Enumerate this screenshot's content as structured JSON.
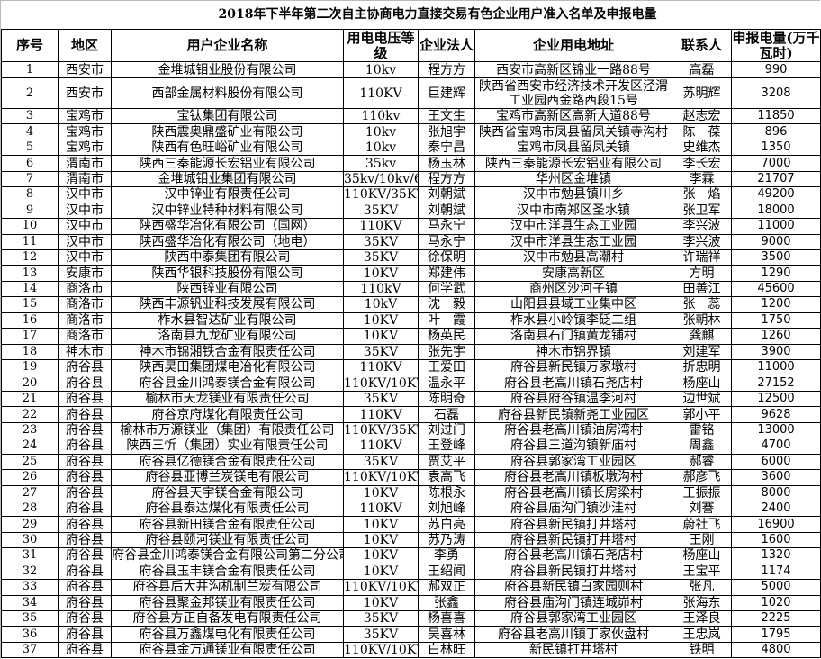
{
  "title": "2018年下半年第二次自主协商电力直接交易有色企业用户准入名单及申报电量",
  "headers": {
    "seq": "序号",
    "region": "地区",
    "company": "用户企业名称",
    "voltage": "用电电压等级",
    "legal": "企业法人",
    "address": "企业用电地址",
    "contact": "联系人",
    "amount": "申报电量(万千瓦时)"
  },
  "rows": [
    {
      "seq": "1",
      "region": "西安市",
      "company": "金堆城钼业股份有限公司",
      "voltage": "10kv",
      "legal": "程方方",
      "address": "西安市高新区锦业一路88号",
      "contact": "高磊",
      "amount": "990"
    },
    {
      "seq": "2",
      "region": "西安市",
      "company": "西部金属材料股份有限公司",
      "voltage": "110KV",
      "legal": "巨建辉",
      "address": "陕西省西安市经济技术开发区泾渭工业园西金路西段15号",
      "contact": "苏明辉",
      "amount": "3208"
    },
    {
      "seq": "3",
      "region": "宝鸡市",
      "company": "宝钛集团有限公司",
      "voltage": "110kv",
      "legal": "王文生",
      "address": "宝鸡市高新区高新大道88号",
      "contact": "赵志宏",
      "amount": "11850"
    },
    {
      "seq": "4",
      "region": "宝鸡市",
      "company": "陕西震奥鼎盛矿业有限公司",
      "voltage": "10kv",
      "legal": "张旭宇",
      "address": "陕西省宝鸡市凤县留凤关镇寺沟村",
      "contact": "陈　葆",
      "amount": "896"
    },
    {
      "seq": "5",
      "region": "宝鸡市",
      "company": "陕西有色旺峪矿业有限公司",
      "voltage": "10kv",
      "legal": "秦宁昌",
      "address": "宝鸡市凤县留凤关镇",
      "contact": "史维杰",
      "amount": "1350"
    },
    {
      "seq": "6",
      "region": "渭南市",
      "company": "陕西三秦能源长宏铝业有限公司",
      "voltage": "35kv",
      "legal": "杨玉林",
      "address": "陕西三秦能源长宏铝业有限公司",
      "contact": "李长宏",
      "amount": "7000"
    },
    {
      "seq": "7",
      "region": "渭南市",
      "company": "金堆城钼业集团有限公司",
      "voltage": "35kv/10kv/6kv",
      "legal": "程方方",
      "address": "华州区金堆镇",
      "contact": "李霖",
      "amount": "21707"
    },
    {
      "seq": "8",
      "region": "汉中市",
      "company": "汉中锌业有限责任公司",
      "voltage": "110KV/35KV",
      "legal": "刘朝斌",
      "address": "汉中市勉县镇川乡",
      "contact": "张　焰",
      "amount": "49200"
    },
    {
      "seq": "9",
      "region": "汉中市",
      "company": "汉中锌业特种材料有限公司",
      "voltage": "35KV",
      "legal": "刘朝斌",
      "address": "汉中市南郑区圣水镇",
      "contact": "张卫军",
      "amount": "18000"
    },
    {
      "seq": "10",
      "region": "汉中市",
      "company": "陕西盛华冶化有限公司（国网）",
      "voltage": "110KV",
      "legal": "马永宁",
      "address": "汉中市洋县生态工业园",
      "contact": "李兴波",
      "amount": "11000"
    },
    {
      "seq": "11",
      "region": "汉中市",
      "company": "陕西盛华冶化有限公司（地电）",
      "voltage": "35KV",
      "legal": "马永宁",
      "address": "汉中市洋县生态工业园",
      "contact": "李兴波",
      "amount": "9000"
    },
    {
      "seq": "12",
      "region": "汉中市",
      "company": "陕西中泰集团有限公司",
      "voltage": "35KV",
      "legal": "徐保明",
      "address": "汉中市勉县高潮村",
      "contact": "许瑞祥",
      "amount": "3500"
    },
    {
      "seq": "13",
      "region": "安康市",
      "company": "陕西华银科技股份有限公司",
      "voltage": "10KV",
      "legal": "郑建伟",
      "address": "安康高新区",
      "contact": "方明",
      "amount": "1290"
    },
    {
      "seq": "14",
      "region": "商洛市",
      "company": "陕西锌业有限公司",
      "voltage": "110kV",
      "legal": "何学武",
      "address": "商州区沙河子镇",
      "contact": "田善江",
      "amount": "45600"
    },
    {
      "seq": "15",
      "region": "商洛市",
      "company": "陕西丰源钒业科技发展有限公司",
      "voltage": "10kV",
      "legal": "沈　毅",
      "address": "山阳县县域工业集中区",
      "contact": "张　蕊",
      "amount": "1200"
    },
    {
      "seq": "16",
      "region": "商洛市",
      "company": "柞水县智达矿业有限公司",
      "voltage": "10KV",
      "legal": "叶　霞",
      "address": "柞水县小岭镇李砭二组",
      "contact": "张朝林",
      "amount": "1750"
    },
    {
      "seq": "17",
      "region": "商洛市",
      "company": "洛南县九龙矿业有限公司",
      "voltage": "10KV",
      "legal": "杨英民",
      "address": "洛南县石门镇黄龙铺村",
      "contact": "龚麒",
      "amount": "1260"
    },
    {
      "seq": "18",
      "region": "神木市",
      "company": "神木市锦湘铁合金有限责任公司",
      "voltage": "35KV",
      "legal": "张先宇",
      "address": "神木市锦界镇",
      "contact": "刘建军",
      "amount": "3900"
    },
    {
      "seq": "19",
      "region": "府谷县",
      "company": "陕西昊田集团煤电冶化有限公司",
      "voltage": "110KV",
      "legal": "王爱田",
      "address": "府谷县新民镇万家墩村",
      "contact": "折忠明",
      "amount": "11000"
    },
    {
      "seq": "20",
      "region": "府谷县",
      "company": "府谷县金川鸿泰镁合金有限公司",
      "voltage": "110KV/10KV",
      "legal": "温永平",
      "address": "府谷县老高川镇石尧店村",
      "contact": "杨座山",
      "amount": "27152"
    },
    {
      "seq": "21",
      "region": "府谷县",
      "company": "榆林市天龙镁业有限责任公司",
      "voltage": "35KV",
      "legal": "陈明奇",
      "address": "府谷县府谷镇温李河村",
      "contact": "边世斌",
      "amount": "12500"
    },
    {
      "seq": "22",
      "region": "府谷县",
      "company": "府谷京府煤化有限责任公司",
      "voltage": "110KV",
      "legal": "石磊",
      "address": "府谷县新民镇新尧工业园区",
      "contact": "郭小平",
      "amount": "9628"
    },
    {
      "seq": "23",
      "region": "府谷县",
      "company": "榆林市万源镁业（集团）有限责任公司",
      "voltage": "110KV/35KV",
      "legal": "刘过门",
      "address": "府谷县老高川镇油房湾村",
      "contact": "雷铭",
      "amount": "13000"
    },
    {
      "seq": "24",
      "region": "府谷县",
      "company": "陕西三忻（集团）实业有限责任公司",
      "voltage": "110KV",
      "legal": "王登峰",
      "address": "府谷县三道沟镇新庙村",
      "contact": "周鑫",
      "amount": "4700"
    },
    {
      "seq": "25",
      "region": "府谷县",
      "company": "府谷县亿德镁合金有限责任公司",
      "voltage": "35KV",
      "legal": "贾艾平",
      "address": "府谷县郭家湾工业园区",
      "contact": "郝睿",
      "amount": "6000"
    },
    {
      "seq": "26",
      "region": "府谷县",
      "company": "府谷县亚博兰炭镁电有限公司",
      "voltage": "110KV/10KV",
      "legal": "袁高飞",
      "address": "府谷县老高川镇板墩沟村",
      "contact": "郝彦飞",
      "amount": "3600"
    },
    {
      "seq": "27",
      "region": "府谷县",
      "company": "府谷县天宇镁合金有限公司",
      "voltage": "10KV",
      "legal": "陈根永",
      "address": "府谷县老高川镇长房梁村",
      "contact": "王振振",
      "amount": "8000"
    },
    {
      "seq": "28",
      "region": "府谷县",
      "company": "府谷县泰达煤化有限责任公司",
      "voltage": "110KV",
      "legal": "刘旭峰",
      "address": "府谷县庙沟门镇沙洼村",
      "contact": "刘謇",
      "amount": "2400"
    },
    {
      "seq": "29",
      "region": "府谷县",
      "company": "府谷县新田镁合金有限责任公司",
      "voltage": "10KV",
      "legal": "苏白亮",
      "address": "府谷县新民镇打井塔村",
      "contact": "蔚社飞",
      "amount": "16900"
    },
    {
      "seq": "30",
      "region": "府谷县",
      "company": "府谷县颐河镁业有限责任公司",
      "voltage": "10KV",
      "legal": "苏乃涛",
      "address": "府谷县新民镇打井塔村",
      "contact": "王刚",
      "amount": "1600"
    },
    {
      "seq": "31",
      "region": "府谷县",
      "company": "府谷县金川鸿泰镁合金有限公司第二分公司",
      "voltage": "10KV",
      "legal": "李勇",
      "address": "府谷县老高川镇石尧店村",
      "contact": "杨座山",
      "amount": "1320"
    },
    {
      "seq": "32",
      "region": "府谷县",
      "company": "府谷县玉丰镁合金有限责任公司",
      "voltage": "10KV",
      "legal": "王绍闻",
      "address": "府谷县新民镇打井塔村",
      "contact": "王宝平",
      "amount": "1174"
    },
    {
      "seq": "33",
      "region": "府谷县",
      "company": "府谷县后大井沟机制兰炭有限公司",
      "voltage": "110KV/10KV",
      "legal": "郝双正",
      "address": "府谷县新民镇白家园则村",
      "contact": "张凡",
      "amount": "5000"
    },
    {
      "seq": "34",
      "region": "府谷县",
      "company": "府谷县聚金邦镁业有限责任公司",
      "voltage": "10KV",
      "legal": "张鑫",
      "address": "府谷县庙沟门镇连城峁村",
      "contact": "张海东",
      "amount": "1020"
    },
    {
      "seq": "35",
      "region": "府谷县",
      "company": "府谷县方正自备发电有限责任公司",
      "voltage": "35KV",
      "legal": "杨喜喜",
      "address": "府谷县郭家湾工业园区",
      "contact": "王泽良",
      "amount": "2225"
    },
    {
      "seq": "36",
      "region": "府谷县",
      "company": "府谷县万鑫煤电化有限责任公司",
      "voltage": "35KV",
      "legal": "吴喜林",
      "address": "府谷县老高川镇丁家伙盘村",
      "contact": "王忠岚",
      "amount": "1795"
    },
    {
      "seq": "37",
      "region": "府谷县",
      "company": "府谷县金万通镁业有限责任公司",
      "voltage": "110KV/10KV",
      "legal": "白林旺",
      "address": "新民镇打井塔村",
      "contact": "铁明",
      "amount": "4800"
    }
  ]
}
